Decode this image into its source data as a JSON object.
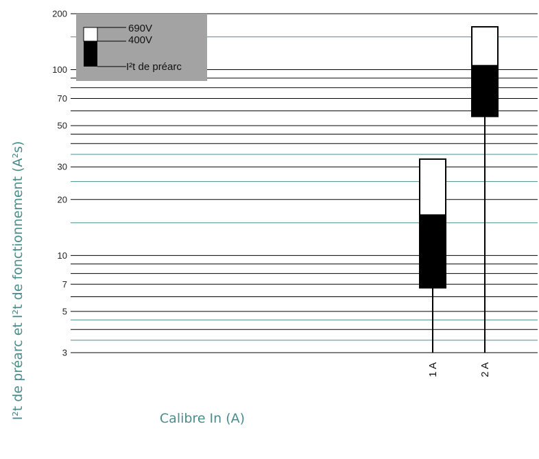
{
  "chart_data": {
    "type": "floating-bar",
    "scale": "log",
    "ylabel": "I²t de préarc et I²t de fonctionnement (A²s)",
    "xlabel": "Calibre In (A)",
    "ylim": [
      3,
      200
    ],
    "ytick_labels": [
      "3",
      "5",
      "7",
      "10",
      "20",
      "30",
      "50",
      "70",
      "100",
      "200"
    ],
    "ytick_values": [
      3,
      5,
      7,
      10,
      20,
      30,
      50,
      70,
      100,
      200
    ],
    "gridlines": [
      3,
      3.5,
      4,
      4.5,
      5,
      6,
      7,
      8,
      9,
      10,
      15,
      20,
      25,
      30,
      35,
      40,
      45,
      50,
      60,
      70,
      80,
      90,
      100,
      150,
      200
    ],
    "teal_gridlines": [
      3.5,
      4.5,
      15,
      25,
      35,
      150
    ],
    "categories": [
      "1 A",
      "2 A"
    ],
    "bars": [
      {
        "category": "1 A",
        "preArc_low": 6.7,
        "v400_top": 16.5,
        "v690_top": 33
      },
      {
        "category": "2 A",
        "preArc_low": 56,
        "v400_top": 105,
        "v690_top": 170
      }
    ],
    "legend": {
      "position": "top-left",
      "items": [
        "690V",
        "400V",
        "I²t de préarc"
      ]
    },
    "colors": {
      "grid_black": "#000000",
      "grid_teal": "#4a8b8c",
      "legend_bg": "#a3a3a3",
      "bar_black": "#000000",
      "bar_white": "#ffffff",
      "axis_title": "#4a8b8c"
    }
  }
}
